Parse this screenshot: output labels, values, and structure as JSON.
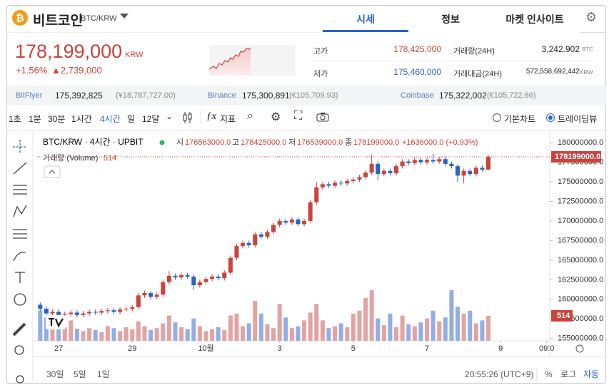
{
  "header": {
    "coin": "비트코인",
    "pair": "BTC/KRW",
    "tabs": [
      "시세",
      "정보",
      "마켓 인사이트"
    ]
  },
  "price": {
    "current": "178,199,000",
    "currency": "KRW",
    "change_pct": "+1.56%",
    "change": "▲2,739,000"
  },
  "stats": {
    "high_label": "고가",
    "high": "178,425,000",
    "low_label": "저가",
    "low": "175,460,000",
    "volume_label": "거래량(24H)",
    "volume": "3,242.902",
    "volume_unit": "BTC",
    "amount_label": "거래대금(24H)",
    "amount": "572,558,692,442",
    "amount_unit": "KRW"
  },
  "exchanges": [
    {
      "name": "BitFlyer",
      "price": "175,392,825",
      "foreign": "(¥18,787,727.00)"
    },
    {
      "name": "Binance",
      "price": "175,300,891",
      "foreign": "(€105,709.93)"
    },
    {
      "name": "Coinbase",
      "price": "175,322,002",
      "foreign": "(€105,722.66)"
    }
  ],
  "toolbar": {
    "intervals": [
      "1초",
      "1분",
      "30분",
      "1시간",
      "4시간",
      "일",
      "12달"
    ],
    "indicator": "지표",
    "modes": [
      "기본차트",
      "트레이딩뷰"
    ]
  },
  "chart_data": {
    "type": "candlestick",
    "title": "BTC/KRW · 4시간 · UPBIT",
    "legend": {
      "o_label": "시",
      "o": "176563000.0",
      "h_label": "고",
      "h": "178425000.0",
      "l_label": "저",
      "l": "176539000.0",
      "c_label": "종",
      "c": "178199000.0",
      "change": "+1636000.0 (+0.93%)",
      "volume_title": "거래량 (Volume)"
    },
    "up_color": "#c8443c",
    "down_color": "#2a62c9",
    "volume_up_color": "#e2a3a3",
    "volume_down_color": "#93aee6",
    "open": [
      159300000,
      158800000,
      158200000,
      158400000,
      158000000,
      158100000,
      158300000,
      158000000,
      158200000,
      158400000,
      158300000,
      158500000,
      158600000,
      158400000,
      158700000,
      158800000,
      159000000,
      160500000,
      160800000,
      160300000,
      160600000,
      162200000,
      163000000,
      162800000,
      163100000,
      162900000,
      161800000,
      162200000,
      162600000,
      162900000,
      162700000,
      163400000,
      165300000,
      166800000,
      167200000,
      166900000,
      168300000,
      168000000,
      168600000,
      169500000,
      170000000,
      169800000,
      170200000,
      169600000,
      170000000,
      172400000,
      174300000,
      174700000,
      174500000,
      174900000,
      174800000,
      175100000,
      175300000,
      175600000,
      176200000,
      177300000,
      176000000,
      176400000,
      176100000,
      177000000,
      177600000,
      177400000,
      177800000,
      177500000,
      177800000,
      177600000,
      177900000,
      177300000,
      177000000,
      175800000,
      176400000,
      176000000,
      176800000,
      176563000
    ],
    "high": [
      159600000,
      159100000,
      158700000,
      158700000,
      158400000,
      158600000,
      158600000,
      158500000,
      158700000,
      158700000,
      158800000,
      158900000,
      158900000,
      159000000,
      159100000,
      159300000,
      160800000,
      161100000,
      161100000,
      160900000,
      162500000,
      163600000,
      163300000,
      163400000,
      163400000,
      163200000,
      162500000,
      162900000,
      163200000,
      163200000,
      163700000,
      165600000,
      167100000,
      167500000,
      167500000,
      168600000,
      168600000,
      168900000,
      169800000,
      170300000,
      170300000,
      170500000,
      170500000,
      170300000,
      172700000,
      175000000,
      175000000,
      175000000,
      175200000,
      175200000,
      175400000,
      175600000,
      175900000,
      176500000,
      178500000,
      177600000,
      176700000,
      176700000,
      177300000,
      177900000,
      177900000,
      178100000,
      178100000,
      178100000,
      178600000,
      178200000,
      178200000,
      177600000,
      177300000,
      176700000,
      176700000,
      177100000,
      177100000,
      178425000
    ],
    "low": [
      158500000,
      157900000,
      157900000,
      157700000,
      157700000,
      157800000,
      157700000,
      157700000,
      157900000,
      158000000,
      158000000,
      158200000,
      158100000,
      158100000,
      158400000,
      158500000,
      158700000,
      160200000,
      160000000,
      160000000,
      160300000,
      161900000,
      162500000,
      162500000,
      162600000,
      161200000,
      161500000,
      161900000,
      162300000,
      162400000,
      162400000,
      163100000,
      165000000,
      166500000,
      166600000,
      166600000,
      167700000,
      167700000,
      168300000,
      169200000,
      169500000,
      169500000,
      169300000,
      169300000,
      169700000,
      172100000,
      174000000,
      174200000,
      174200000,
      174500000,
      174500000,
      174800000,
      175000000,
      175300000,
      175900000,
      175200000,
      175700000,
      175800000,
      175800000,
      176700000,
      177100000,
      177100000,
      177200000,
      177200000,
      177300000,
      177300000,
      177000000,
      176700000,
      175000000,
      174800000,
      175700000,
      175700000,
      176300000,
      176539000
    ],
    "close": [
      158800000,
      158200000,
      158400000,
      158000000,
      158100000,
      158300000,
      158000000,
      158200000,
      158400000,
      158300000,
      158500000,
      158600000,
      158400000,
      158700000,
      158800000,
      159000000,
      160500000,
      160800000,
      160300000,
      160600000,
      162200000,
      163000000,
      162800000,
      163100000,
      162900000,
      161800000,
      162200000,
      162600000,
      162900000,
      162700000,
      163400000,
      165300000,
      166800000,
      167200000,
      166900000,
      168300000,
      168000000,
      168600000,
      169500000,
      170000000,
      169800000,
      170200000,
      169600000,
      170000000,
      172400000,
      174300000,
      174700000,
      174500000,
      174900000,
      174800000,
      175100000,
      175300000,
      175600000,
      176200000,
      177300000,
      176000000,
      176400000,
      176100000,
      177000000,
      177600000,
      177400000,
      177800000,
      177500000,
      177800000,
      177600000,
      177900000,
      177300000,
      177000000,
      175800000,
      176400000,
      176000000,
      176800000,
      176563000,
      178199000
    ],
    "volume": [
      620,
      480,
      300,
      350,
      280,
      420,
      250,
      200,
      260,
      220,
      180,
      300,
      260,
      200,
      280,
      240,
      400,
      300,
      220,
      260,
      360,
      520,
      380,
      280,
      240,
      460,
      300,
      200,
      240,
      280,
      220,
      520,
      560,
      300,
      360,
      820,
      560,
      340,
      260,
      760,
      480,
      260,
      300,
      420,
      580,
      760,
      420,
      260,
      300,
      360,
      280,
      560,
      620,
      880,
      1040,
      460,
      320,
      560,
      280,
      520,
      340,
      300,
      380,
      460,
      620,
      400,
      480,
      1040,
      700,
      560,
      620,
      360,
      420,
      514
    ],
    "xlim": [
      -0.5,
      83
    ],
    "xticks": [
      {
        "value": 3,
        "label": "27"
      },
      {
        "value": 15,
        "label": "29"
      },
      {
        "value": 27,
        "label": "10월"
      },
      {
        "value": 39,
        "label": "3"
      },
      {
        "value": 51,
        "label": "5"
      },
      {
        "value": 63,
        "label": "7"
      },
      {
        "value": 75,
        "label": "9"
      },
      {
        "value": 82.5,
        "label": "09:0"
      }
    ],
    "ylim": [
      154700000,
      181200000
    ],
    "yticks": [
      {
        "value": 180000000,
        "label": "180000000.0"
      },
      {
        "value": 177500000,
        "label": "177500000.0"
      },
      {
        "value": 175000000,
        "label": "175000000.0"
      },
      {
        "value": 172500000,
        "label": "172500000.0"
      },
      {
        "value": 170000000,
        "label": "170000000.0"
      },
      {
        "value": 167500000,
        "label": "167500000.0"
      },
      {
        "value": 165000000,
        "label": "165000000.0"
      },
      {
        "value": 162500000,
        "label": "162500000.0"
      },
      {
        "value": 160000000,
        "label": "160000000.0"
      },
      {
        "value": 157500000,
        "label": "157500000.0"
      },
      {
        "value": 155000000,
        "label": "155000000.0"
      }
    ],
    "y2lim": [
      0,
      4270
    ],
    "bottom": {
      "ranges": [
        "30일",
        "5일",
        "1일"
      ],
      "time": "20:55:26 (UTC+9)",
      "options": [
        "%",
        "로그",
        "자동"
      ]
    }
  }
}
